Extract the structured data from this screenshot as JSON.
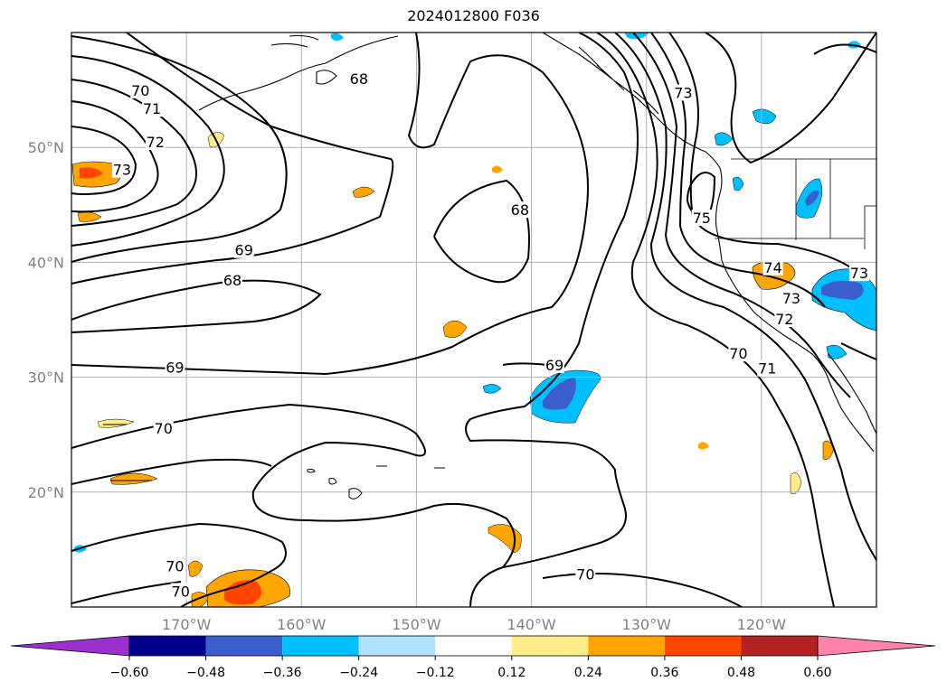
{
  "title": "2024012800 F036",
  "map": {
    "lon_range": [
      -180,
      -110
    ],
    "lat_range": [
      10,
      60
    ],
    "lon_ticks": [
      {
        "value": -170,
        "label": "170°W"
      },
      {
        "value": -160,
        "label": "160°W"
      },
      {
        "value": -150,
        "label": "150°W"
      },
      {
        "value": -140,
        "label": "140°W"
      },
      {
        "value": -130,
        "label": "130°W"
      },
      {
        "value": -120,
        "label": "120°W"
      }
    ],
    "lat_ticks": [
      {
        "value": 50,
        "label": "50°N"
      },
      {
        "value": 40,
        "label": "40°N"
      },
      {
        "value": 30,
        "label": "30°N"
      },
      {
        "value": 20,
        "label": "20°N"
      }
    ],
    "grid": true,
    "tick_color": "#808080"
  },
  "contour_labels": [
    {
      "text": "70",
      "lon": -174,
      "lat": 54.9
    },
    {
      "text": "71",
      "lon": -173,
      "lat": 53.3
    },
    {
      "text": "72",
      "lon": -172.7,
      "lat": 50.4
    },
    {
      "text": "73",
      "lon": -175.6,
      "lat": 48
    },
    {
      "text": "68",
      "lon": -155,
      "lat": 55.9
    },
    {
      "text": "68",
      "lon": -141,
      "lat": 44.5
    },
    {
      "text": "69",
      "lon": -165,
      "lat": 41
    },
    {
      "text": "68",
      "lon": -166,
      "lat": 38.4
    },
    {
      "text": "69",
      "lon": -171,
      "lat": 30.8
    },
    {
      "text": "70",
      "lon": -172,
      "lat": 25.5
    },
    {
      "text": "69",
      "lon": -138,
      "lat": 31
    },
    {
      "text": "73",
      "lon": -126.8,
      "lat": 54.7
    },
    {
      "text": "75",
      "lon": -125.2,
      "lat": 43.8
    },
    {
      "text": "74",
      "lon": -119,
      "lat": 39.5
    },
    {
      "text": "73",
      "lon": -111.5,
      "lat": 39
    },
    {
      "text": "73",
      "lon": -117.4,
      "lat": 36.8
    },
    {
      "text": "72",
      "lon": -118,
      "lat": 35
    },
    {
      "text": "70",
      "lon": -122,
      "lat": 32
    },
    {
      "text": "71",
      "lon": -119.5,
      "lat": 30.7
    },
    {
      "text": "70",
      "lon": -171,
      "lat": 13.5
    },
    {
      "text": "70",
      "lon": -170.5,
      "lat": 11.3
    },
    {
      "text": "70",
      "lon": -135.3,
      "lat": 12.8
    }
  ],
  "colorbar": {
    "labels": [
      "−0.60",
      "−0.48",
      "−0.36",
      "−0.24",
      "−0.12",
      "0.12",
      "0.24",
      "0.36",
      "0.48",
      "0.60"
    ],
    "colors": [
      "#9b30cd",
      "#00008b",
      "#3a5fcd",
      "#00bfff",
      "#b0e2ff",
      "#ffffff",
      "#ffec8b",
      "#ffa500",
      "#ff4500",
      "#b22222",
      "#ff82ab"
    ],
    "min_color": "#9b30cd",
    "max_color": "#ff82ab"
  }
}
